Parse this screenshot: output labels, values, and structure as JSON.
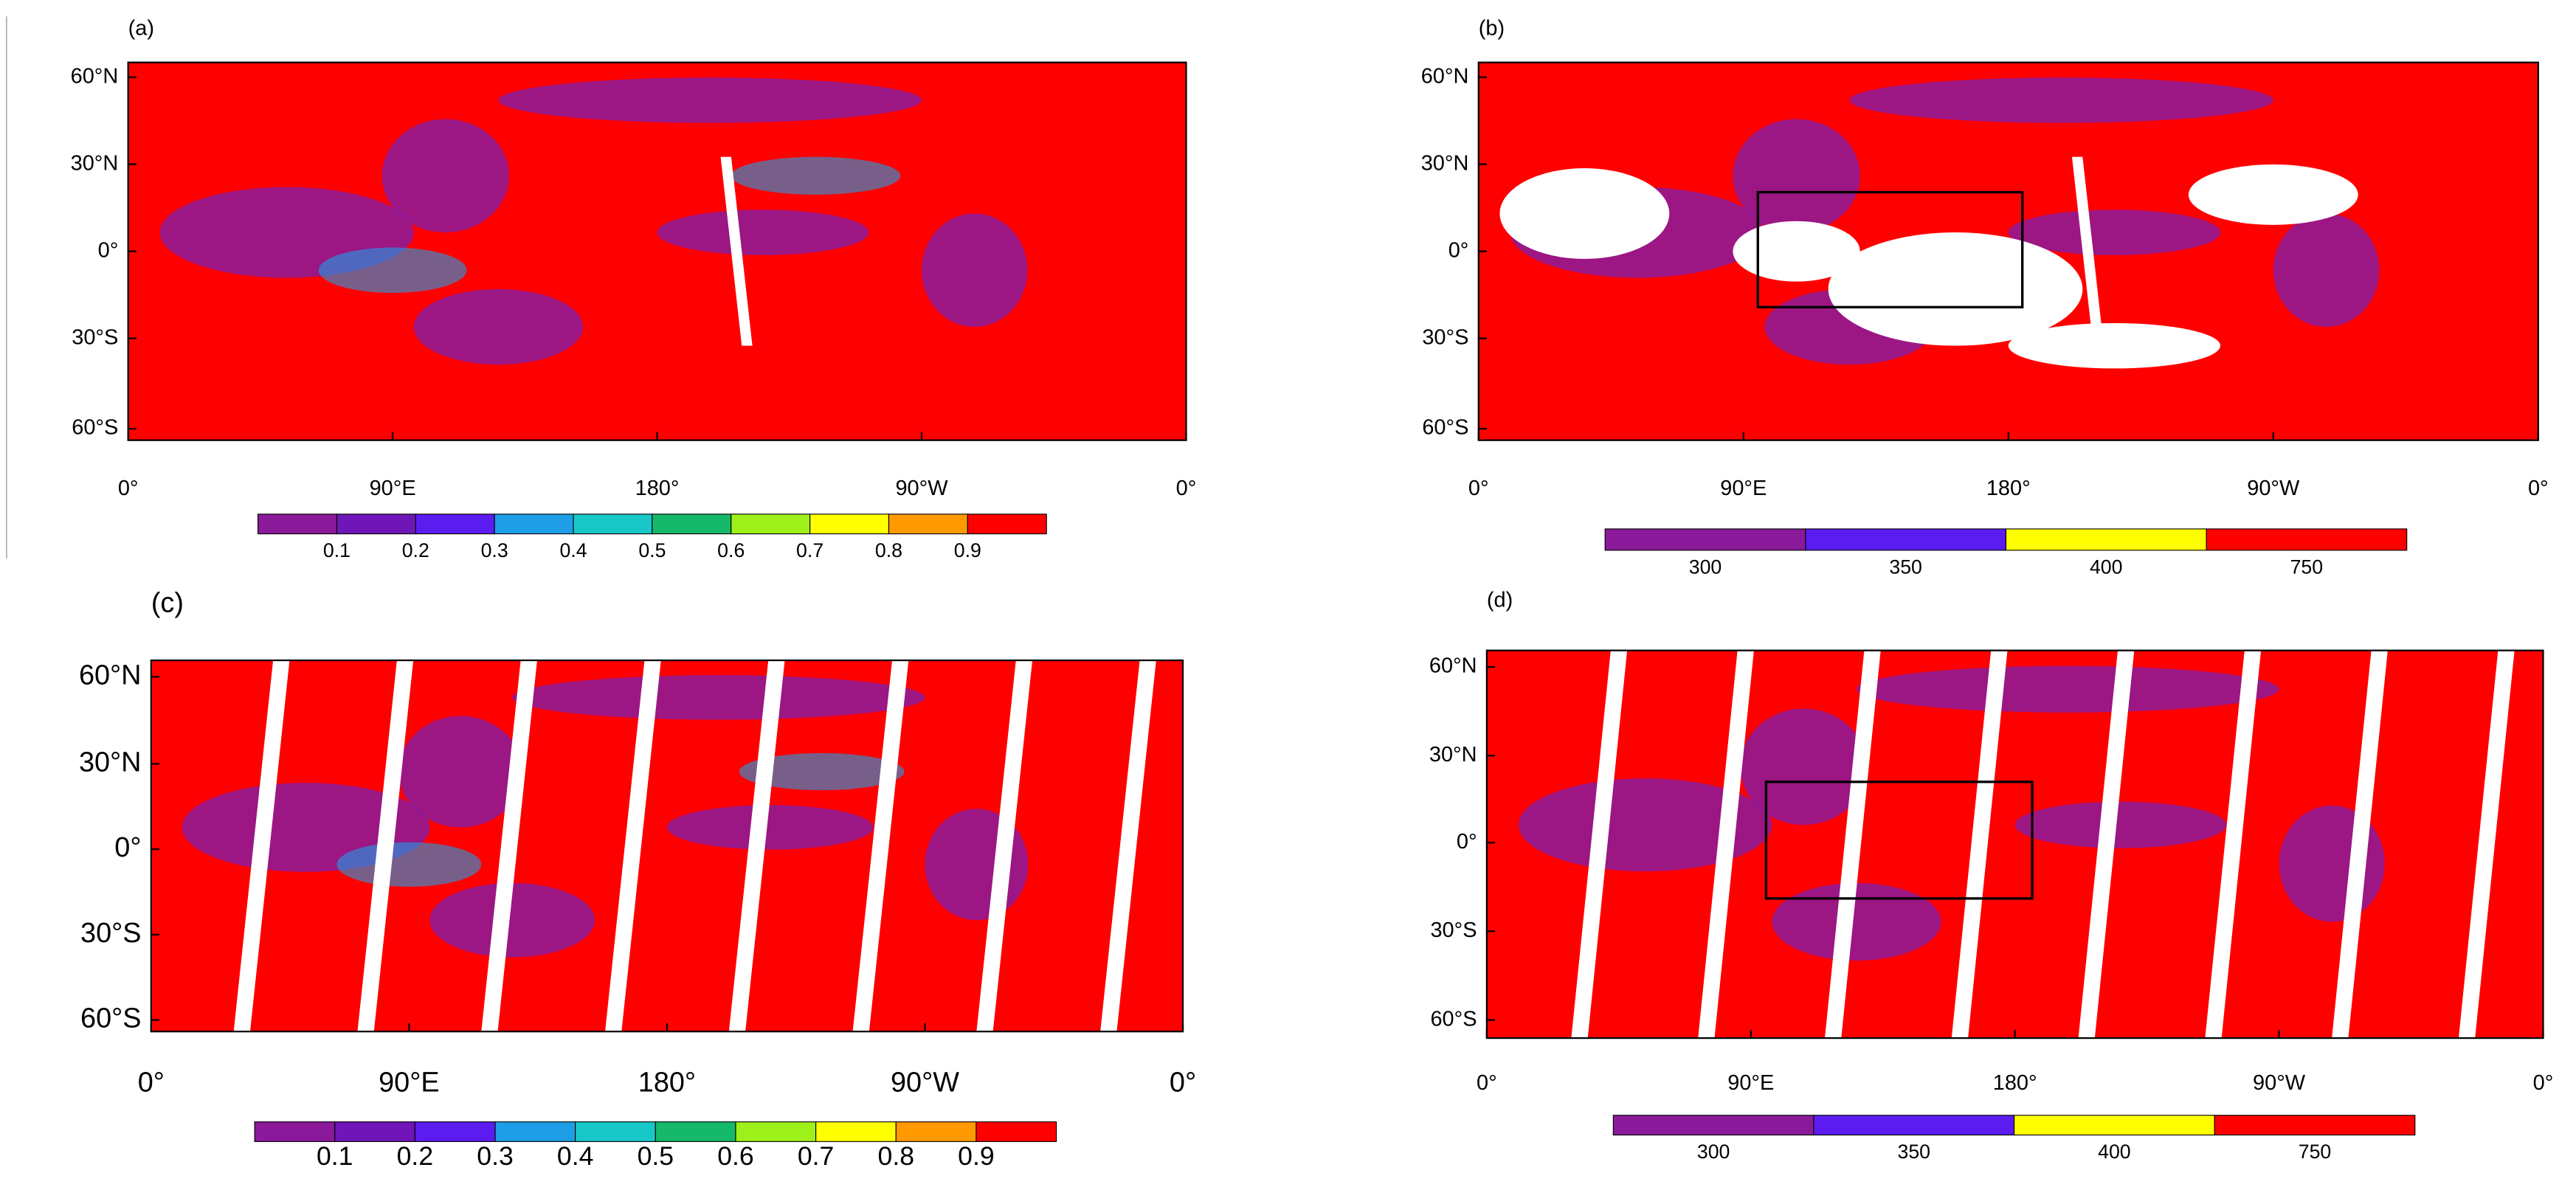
{
  "panels": [
    {
      "label": "(a)",
      "yticks": [
        "60°N",
        "30°N",
        "0°",
        "30°S",
        "60°S"
      ],
      "xticks": [
        "0°",
        "90°E",
        "180°",
        "90°W",
        "0°"
      ],
      "colorbar": {
        "colors": [
          "#8b1a9b",
          "#7015b8",
          "#5b1cf0",
          "#1e9ee6",
          "#18c8c8",
          "#16b86a",
          "#9ef01a",
          "#ffff00",
          "#ff9900",
          "#ff0000"
        ],
        "labels": [
          "0.1",
          "0.2",
          "0.3",
          "0.4",
          "0.5",
          "0.6",
          "0.7",
          "0.8",
          "0.9"
        ]
      }
    },
    {
      "label": "(b)",
      "yticks": [
        "60°N",
        "30°N",
        "0°",
        "30°S",
        "60°S"
      ],
      "xticks": [
        "0°",
        "90°E",
        "180°",
        "90°W",
        "0°"
      ],
      "colorbar": {
        "colors": [
          "#8b1a9b",
          "#5b1cf0",
          "#ffff00",
          "#ff0000"
        ],
        "labels": [
          "300",
          "350",
          "400",
          "750"
        ]
      }
    },
    {
      "label": "(c)",
      "yticks": [
        "60°N",
        "30°N",
        "0°",
        "30°S",
        "60°S"
      ],
      "xticks": [
        "0°",
        "90°E",
        "180°",
        "90°W",
        "0°"
      ],
      "colorbar": {
        "colors": [
          "#8b1a9b",
          "#7015b8",
          "#5b1cf0",
          "#1e9ee6",
          "#18c8c8",
          "#16b86a",
          "#9ef01a",
          "#ffff00",
          "#ff9900",
          "#ff0000"
        ],
        "labels": [
          "0.1",
          "0.2",
          "0.3",
          "0.4",
          "0.5",
          "0.6",
          "0.7",
          "0.8",
          "0.9"
        ]
      }
    },
    {
      "label": "(d)",
      "yticks": [
        "60°N",
        "30°N",
        "0°",
        "30°S",
        "60°S"
      ],
      "xticks": [
        "0°",
        "90°E",
        "180°",
        "90°W",
        "0°"
      ],
      "colorbar": {
        "colors": [
          "#8b1a9b",
          "#5b1cf0",
          "#ffff00",
          "#ff0000"
        ],
        "labels": [
          "300",
          "350",
          "400",
          "750"
        ]
      }
    }
  ]
}
